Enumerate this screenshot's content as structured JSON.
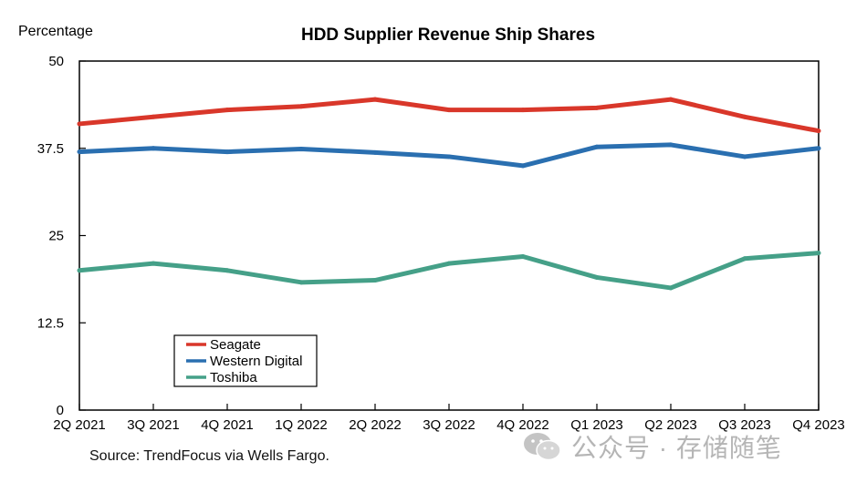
{
  "chart_data": {
    "type": "line",
    "title": "HDD Supplier Revenue Ship Shares",
    "ylabel": "Percentage",
    "xlabel": "",
    "ylim": [
      0,
      50
    ],
    "yticks": [
      0,
      12.5,
      25,
      37.5,
      50
    ],
    "ytick_labels": [
      "0",
      "12.5",
      "25",
      "37.5",
      "50"
    ],
    "categories": [
      "2Q 2021",
      "3Q 2021",
      "4Q 2021",
      "1Q 2022",
      "2Q 2022",
      "3Q 2022",
      "4Q 2022",
      "Q1 2023",
      "Q2 2023",
      "Q3 2023",
      "Q4 2023"
    ],
    "series": [
      {
        "name": "Seagate",
        "color": "#d9372a",
        "values": [
          41.0,
          42.0,
          43.0,
          43.5,
          44.5,
          43.0,
          43.0,
          43.3,
          44.5,
          42.0,
          40.0
        ]
      },
      {
        "name": "Western Digital",
        "color": "#2a6fb0",
        "values": [
          37.0,
          37.5,
          37.0,
          37.4,
          36.9,
          36.3,
          35.0,
          37.7,
          38.0,
          36.3,
          37.5
        ]
      },
      {
        "name": "Toshiba",
        "color": "#45a088",
        "values": [
          20.0,
          21.0,
          20.0,
          18.3,
          18.6,
          21.0,
          22.0,
          19.0,
          17.5,
          21.7,
          22.5
        ]
      }
    ],
    "legend_position": "lower-left",
    "grid": false
  },
  "source": "Source: TrendFocus via Wells Fargo.",
  "watermark": "公众号 · 存储随笔"
}
